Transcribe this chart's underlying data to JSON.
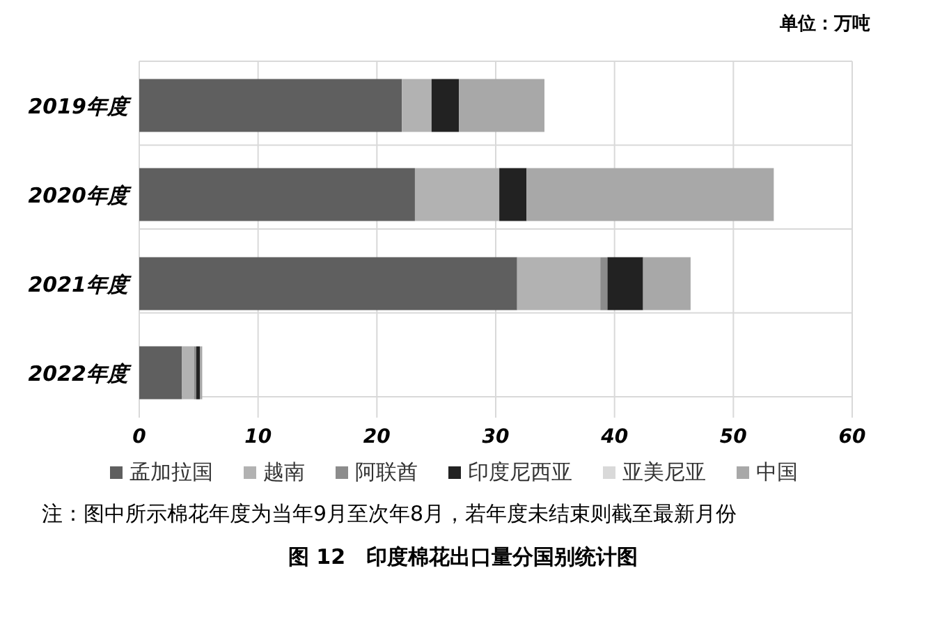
{
  "chart_data": {
    "type": "bar",
    "orientation": "horizontal",
    "stacked": true,
    "title": "图 12　印度棉花出口量分国别统计图",
    "annotations": [
      "单位：万吨",
      "注：图中所示棉花年度为当年9月至次年8月，若年度未结束则截至最新月份"
    ],
    "categories": [
      "2019年度",
      "2020年度",
      "2021年度",
      "2022年度"
    ],
    "series": [
      {
        "name": "孟加拉国",
        "color": "#5f5f5f",
        "values": [
          22.1,
          23.2,
          31.8,
          3.6
        ]
      },
      {
        "name": "越南",
        "color": "#b2b2b2",
        "values": [
          2.5,
          7.1,
          7.0,
          1.0
        ]
      },
      {
        "name": "阿联酋",
        "color": "#8c8c8c",
        "values": [
          0,
          0,
          0.6,
          0.2
        ]
      },
      {
        "name": "印度尼西亚",
        "color": "#222222",
        "values": [
          2.3,
          2.3,
          3.0,
          0.3
        ]
      },
      {
        "name": "亚美尼亚",
        "color": "#d9d9d9",
        "values": [
          0,
          0,
          0,
          null
        ]
      },
      {
        "name": "中国",
        "color": "#a8a8a8",
        "values": [
          7.2,
          20.8,
          4.0,
          0.2
        ]
      }
    ],
    "xlim": [
      0,
      60
    ],
    "xticks": [
      0,
      10,
      20,
      30,
      40,
      50,
      60
    ],
    "grid": true,
    "legend": "bottom"
  }
}
